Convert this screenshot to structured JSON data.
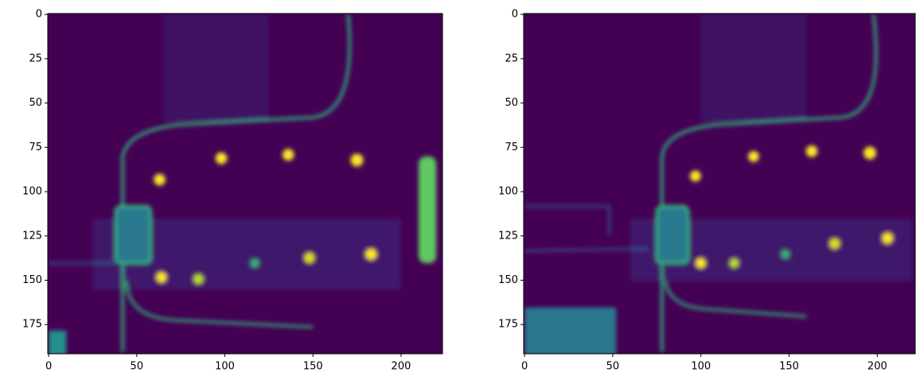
{
  "chart_data": [
    {
      "type": "image",
      "xlim": [
        -0.5,
        223.5
      ],
      "ylim": [
        191.5,
        -0.5
      ],
      "xticks": [
        0,
        50,
        100,
        150,
        200
      ],
      "yticks": [
        0,
        25,
        50,
        75,
        100,
        125,
        150,
        175
      ]
    },
    {
      "type": "image",
      "xlim": [
        -0.5,
        221.5
      ],
      "ylim": [
        191.5,
        -0.5
      ],
      "xticks": [
        0,
        50,
        100,
        150,
        200
      ],
      "yticks": [
        0,
        25,
        50,
        75,
        100,
        125,
        150,
        175
      ]
    }
  ]
}
